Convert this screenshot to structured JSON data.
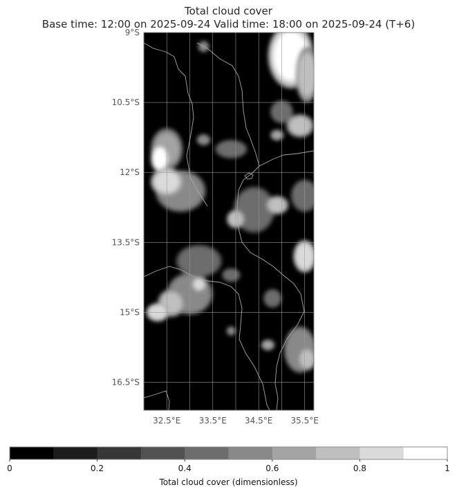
{
  "title": {
    "line1": "Total cloud cover",
    "line2": "Base time: 12:00 on 2025-09-24   Valid time: 18:00 on 2025-09-24 (T+6)"
  },
  "map": {
    "lon_range": [
      32.0,
      35.7
    ],
    "lat_range": [
      -17.1,
      -9.0
    ],
    "lat_ticks": [
      {
        "value": -9.0,
        "label": "9°S"
      },
      {
        "value": -10.5,
        "label": "10.5°S"
      },
      {
        "value": -12.0,
        "label": "12°S"
      },
      {
        "value": -13.5,
        "label": "13.5°S"
      },
      {
        "value": -15.0,
        "label": "15°S"
      },
      {
        "value": -16.5,
        "label": "16.5°S"
      }
    ],
    "lon_ticks": [
      {
        "value": 32.5,
        "label": "32.5°E"
      },
      {
        "value": 33.5,
        "label": "33.5°E"
      },
      {
        "value": 34.5,
        "label": "34.5°E"
      },
      {
        "value": 35.5,
        "label": "35.5°E"
      }
    ],
    "grid": true,
    "background_color": "#000000",
    "gridline_color": "#9a9a9a",
    "coastline_color": "#a8a8a8"
  },
  "colorbar": {
    "min": 0,
    "max": 1,
    "levels": [
      0,
      0.1,
      0.2,
      0.3,
      0.4,
      0.5,
      0.6,
      0.7,
      0.8,
      0.9,
      1.0
    ],
    "colors": [
      "#000000",
      "#1c1c1c",
      "#373737",
      "#525252",
      "#6d6d6d",
      "#898989",
      "#a4a4a4",
      "#bfbfbf",
      "#dadada",
      "#ffffff"
    ],
    "tick_labels": [
      {
        "value": 0,
        "label": "0"
      },
      {
        "value": 0.2,
        "label": "0.2"
      },
      {
        "value": 0.4,
        "label": "0.4"
      },
      {
        "value": 0.6,
        "label": "0.6"
      },
      {
        "value": 0.8,
        "label": "0.8"
      },
      {
        "value": 1,
        "label": "1"
      }
    ],
    "label": "Total cloud cover (dimensionless)"
  },
  "cloud_regions": [
    {
      "lon": 35.2,
      "lat": -9.5,
      "rx": 0.5,
      "ry": 0.7,
      "value": 1.0
    },
    {
      "lon": 35.55,
      "lat": -9.9,
      "rx": 0.25,
      "ry": 0.6,
      "value": 0.8
    },
    {
      "lon": 33.3,
      "lat": -9.3,
      "rx": 0.12,
      "ry": 0.12,
      "value": 0.6
    },
    {
      "lon": 35.0,
      "lat": -10.7,
      "rx": 0.25,
      "ry": 0.25,
      "value": 0.5
    },
    {
      "lon": 35.4,
      "lat": -11.0,
      "rx": 0.3,
      "ry": 0.25,
      "value": 0.8
    },
    {
      "lon": 34.9,
      "lat": -11.2,
      "rx": 0.15,
      "ry": 0.12,
      "value": 0.7
    },
    {
      "lon": 32.5,
      "lat": -11.5,
      "rx": 0.35,
      "ry": 0.45,
      "value": 0.7
    },
    {
      "lon": 32.35,
      "lat": -11.7,
      "rx": 0.2,
      "ry": 0.3,
      "value": 1.0
    },
    {
      "lon": 32.8,
      "lat": -12.4,
      "rx": 0.55,
      "ry": 0.45,
      "value": 0.6
    },
    {
      "lon": 32.5,
      "lat": -12.2,
      "rx": 0.35,
      "ry": 0.3,
      "value": 0.9
    },
    {
      "lon": 33.3,
      "lat": -11.3,
      "rx": 0.15,
      "ry": 0.12,
      "value": 0.6
    },
    {
      "lon": 33.9,
      "lat": -11.5,
      "rx": 0.35,
      "ry": 0.2,
      "value": 0.5
    },
    {
      "lon": 34.4,
      "lat": -12.8,
      "rx": 0.45,
      "ry": 0.5,
      "value": 0.5
    },
    {
      "lon": 34.0,
      "lat": -13.0,
      "rx": 0.2,
      "ry": 0.2,
      "value": 0.8
    },
    {
      "lon": 34.9,
      "lat": -12.7,
      "rx": 0.25,
      "ry": 0.2,
      "value": 0.8
    },
    {
      "lon": 35.5,
      "lat": -12.5,
      "rx": 0.3,
      "ry": 0.35,
      "value": 0.5
    },
    {
      "lon": 35.5,
      "lat": -13.8,
      "rx": 0.25,
      "ry": 0.35,
      "value": 0.9
    },
    {
      "lon": 33.2,
      "lat": -13.9,
      "rx": 0.5,
      "ry": 0.35,
      "value": 0.5
    },
    {
      "lon": 33.0,
      "lat": -14.6,
      "rx": 0.5,
      "ry": 0.45,
      "value": 0.6
    },
    {
      "lon": 32.6,
      "lat": -14.8,
      "rx": 0.3,
      "ry": 0.3,
      "value": 0.8
    },
    {
      "lon": 33.2,
      "lat": -14.4,
      "rx": 0.15,
      "ry": 0.15,
      "value": 0.9
    },
    {
      "lon": 32.3,
      "lat": -15.0,
      "rx": 0.25,
      "ry": 0.2,
      "value": 0.9
    },
    {
      "lon": 33.9,
      "lat": -14.2,
      "rx": 0.2,
      "ry": 0.15,
      "value": 0.5
    },
    {
      "lon": 34.8,
      "lat": -14.7,
      "rx": 0.2,
      "ry": 0.2,
      "value": 0.5
    },
    {
      "lon": 35.4,
      "lat": -15.8,
      "rx": 0.35,
      "ry": 0.5,
      "value": 0.6
    },
    {
      "lon": 35.55,
      "lat": -16.0,
      "rx": 0.2,
      "ry": 0.25,
      "value": 0.8
    },
    {
      "lon": 34.7,
      "lat": -15.7,
      "rx": 0.15,
      "ry": 0.12,
      "value": 0.7
    },
    {
      "lon": 33.9,
      "lat": -15.4,
      "rx": 0.1,
      "ry": 0.1,
      "value": 0.6
    }
  ]
}
